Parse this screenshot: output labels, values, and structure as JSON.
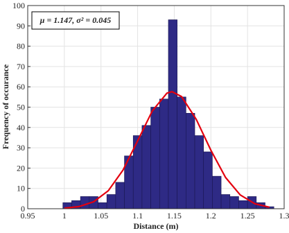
{
  "chart_data": {
    "type": "histogram",
    "xlabel": "Distance (m)",
    "ylabel": "Frequency of occurance",
    "annotation": "μ = 1.147, σ² = 0.045",
    "bins": [
      0.998,
      1.01,
      1.022,
      1.034,
      1.046,
      1.058,
      1.07,
      1.082,
      1.094,
      1.106,
      1.118,
      1.13,
      1.142,
      1.154,
      1.166,
      1.178,
      1.19,
      1.202,
      1.214,
      1.226,
      1.238,
      1.25,
      1.262,
      1.274,
      1.286
    ],
    "values": [
      3,
      4,
      6,
      6,
      3,
      7,
      13,
      26,
      36,
      41,
      50,
      54,
      93,
      55,
      47,
      36,
      28,
      16,
      7,
      6,
      4,
      6,
      3,
      1
    ],
    "color": "#2e2a85",
    "curve": {
      "x": [
        1.0,
        1.02,
        1.04,
        1.06,
        1.08,
        1.1,
        1.12,
        1.14,
        1.147,
        1.16,
        1.18,
        1.2,
        1.22,
        1.24,
        1.26,
        1.28
      ],
      "values": [
        0.28,
        1.07,
        3.41,
        8.89,
        19.0,
        33.4,
        48.1,
        56.9,
        57.6,
        55.2,
        44.0,
        28.8,
        15.4,
        6.8,
        2.46,
        0.73
      ],
      "color": "#e3000f"
    },
    "xlim": [
      0.95,
      1.3
    ],
    "xticks": [
      0.95,
      1,
      1.05,
      1.1,
      1.15,
      1.2,
      1.25,
      1.3
    ],
    "ylim": [
      0,
      100
    ],
    "yticks": [
      0,
      10,
      20,
      30,
      40,
      50,
      60,
      70,
      80,
      90,
      100
    ],
    "grid": true
  }
}
